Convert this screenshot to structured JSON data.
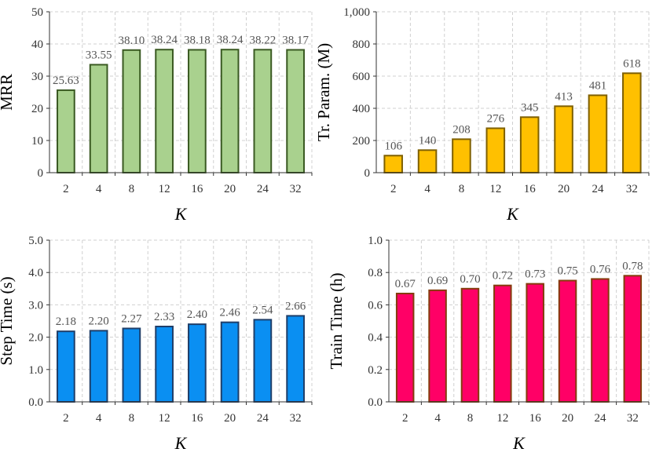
{
  "chart_data": [
    {
      "type": "bar",
      "xlabel": "K",
      "ylabel": "MRR",
      "categories": [
        "2",
        "4",
        "8",
        "12",
        "16",
        "20",
        "24",
        "32"
      ],
      "values": [
        25.63,
        33.55,
        38.1,
        38.24,
        38.18,
        38.24,
        38.22,
        38.17
      ],
      "labels": [
        "25.63",
        "33.55",
        "38.10",
        "38.24",
        "38.18",
        "38.24",
        "38.22",
        "38.17"
      ],
      "ylim": [
        0,
        50
      ],
      "yticks": [
        "0",
        "10",
        "20",
        "30",
        "40",
        "50"
      ],
      "grid": true,
      "fill": "#a9d18e",
      "stroke": "#3a5a22"
    },
    {
      "type": "bar",
      "xlabel": "K",
      "ylabel": "Tr. Param. (M)",
      "categories": [
        "2",
        "4",
        "8",
        "12",
        "16",
        "20",
        "24",
        "32"
      ],
      "values": [
        106,
        140,
        208,
        276,
        345,
        413,
        481,
        618
      ],
      "labels": [
        "106",
        "140",
        "208",
        "276",
        "345",
        "413",
        "481",
        "618"
      ],
      "ylim": [
        0,
        1000
      ],
      "yticks": [
        "0",
        "200",
        "400",
        "600",
        "800",
        "1,000"
      ],
      "grid": true,
      "fill": "#ffc000",
      "stroke": "#7f6000"
    },
    {
      "type": "bar",
      "xlabel": "K",
      "ylabel": "Step Time (s)",
      "categories": [
        "2",
        "4",
        "8",
        "12",
        "16",
        "20",
        "24",
        "32"
      ],
      "values": [
        2.18,
        2.2,
        2.27,
        2.33,
        2.4,
        2.46,
        2.54,
        2.66
      ],
      "labels": [
        "2.18",
        "2.20",
        "2.27",
        "2.33",
        "2.40",
        "2.46",
        "2.54",
        "2.66"
      ],
      "ylim": [
        0,
        5
      ],
      "yticks": [
        "0.0",
        "1.0",
        "2.0",
        "3.0",
        "4.0",
        "5.0"
      ],
      "grid": true,
      "fill": "#0a8ff2",
      "stroke": "#1f3f6a"
    },
    {
      "type": "bar",
      "xlabel": "K",
      "ylabel": "Train Time (h)",
      "categories": [
        "2",
        "4",
        "8",
        "12",
        "16",
        "20",
        "24",
        "32"
      ],
      "values": [
        0.67,
        0.69,
        0.7,
        0.72,
        0.73,
        0.75,
        0.76,
        0.78
      ],
      "labels": [
        "0.67",
        "0.69",
        "0.70",
        "0.72",
        "0.73",
        "0.75",
        "0.76",
        "0.78"
      ],
      "ylim": [
        0,
        1
      ],
      "yticks": [
        "0.0",
        "0.2",
        "0.4",
        "0.6",
        "0.8",
        "1.0"
      ],
      "grid": true,
      "fill": "#ff0066",
      "stroke": "#843c0c"
    }
  ]
}
